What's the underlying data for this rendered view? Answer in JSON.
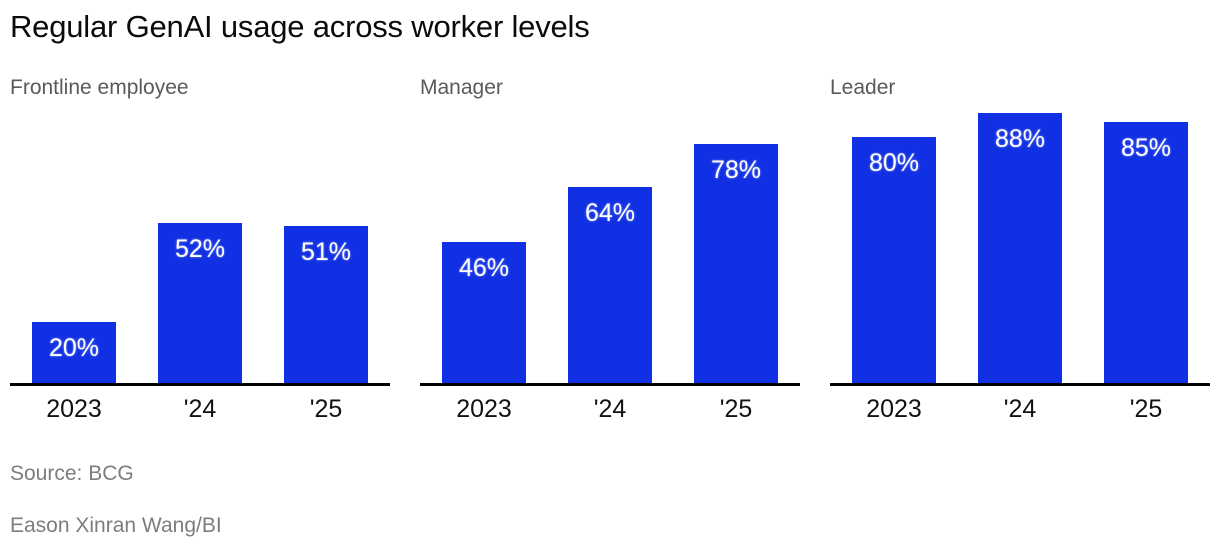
{
  "title": "Regular GenAI usage across worker levels",
  "footer": {
    "source": "Source: BCG",
    "byline": "Eason Xinran Wang/BI"
  },
  "colors": {
    "bar": "#1130e4",
    "title": "#0b0b0b",
    "panel_label": "#5a5a5a",
    "footer": "#7d7d7d",
    "axis": "#000000",
    "value_label": "#ffffff"
  },
  "chart_data": [
    {
      "type": "bar",
      "title": "Frontline employee",
      "categories": [
        "2023",
        "'24",
        "'25"
      ],
      "values": [
        20,
        52,
        51
      ],
      "value_labels": [
        "20%",
        "52%",
        "51%"
      ],
      "unit": "%",
      "ylim": [
        0,
        100
      ],
      "grid": false,
      "legend": "none"
    },
    {
      "type": "bar",
      "title": "Manager",
      "categories": [
        "2023",
        "'24",
        "'25"
      ],
      "values": [
        46,
        64,
        78
      ],
      "value_labels": [
        "46%",
        "64%",
        "78%"
      ],
      "unit": "%",
      "ylim": [
        0,
        100
      ],
      "grid": false,
      "legend": "none"
    },
    {
      "type": "bar",
      "title": "Leader",
      "categories": [
        "2023",
        "'24",
        "'25"
      ],
      "values": [
        80,
        88,
        85
      ],
      "value_labels": [
        "80%",
        "88%",
        "85%"
      ],
      "unit": "%",
      "ylim": [
        0,
        100
      ],
      "grid": false,
      "legend": "none"
    }
  ]
}
